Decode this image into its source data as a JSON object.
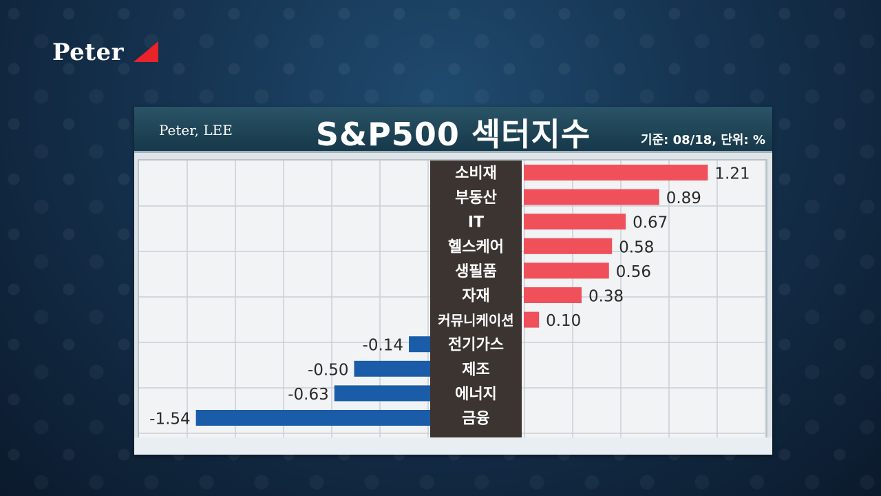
{
  "logo": {
    "text": "Peter"
  },
  "header": {
    "author": "Peter, LEE",
    "title": "S&P500 섹터지수",
    "meta": "기준: 08/18, 단위: %"
  },
  "colors": {
    "positive": "#f0505a",
    "negative": "#1a5ca8",
    "label_panel": "#3b3431"
  },
  "chart_data": {
    "type": "bar",
    "orientation": "horizontal",
    "title": "S&P500 섹터지수",
    "categories": [
      "소비재",
      "부동산",
      "IT",
      "헬스케어",
      "생필품",
      "자재",
      "커뮤니케이션",
      "전기가스",
      "제조",
      "에너지",
      "금융"
    ],
    "values": [
      1.21,
      0.89,
      0.67,
      0.58,
      0.56,
      0.38,
      0.1,
      -0.14,
      -0.5,
      -0.63,
      -1.54
    ],
    "value_labels": [
      "1.21",
      "0.89",
      "0.67",
      "0.58",
      "0.56",
      "0.38",
      "0.10",
      "-0.14",
      "-0.50",
      "-0.63",
      "-1.54"
    ],
    "unit": "%",
    "grid": true
  }
}
